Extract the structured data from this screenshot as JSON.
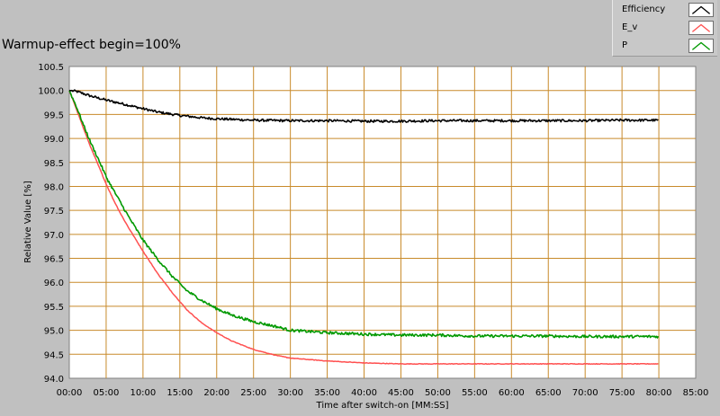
{
  "chart_data": {
    "type": "line",
    "title": "Warmup-effect begin=100%",
    "xlabel": "Time after switch-on [MM:SS]",
    "ylabel": "Relative Value [%]",
    "xlim": [
      0,
      85
    ],
    "ylim": [
      94.0,
      100.5
    ],
    "x_ticks": [
      0,
      5,
      10,
      15,
      20,
      25,
      30,
      35,
      40,
      45,
      50,
      55,
      60,
      65,
      70,
      75,
      80,
      85
    ],
    "x_tick_labels": [
      "00:00",
      "05:00",
      "10:00",
      "15:00",
      "20:00",
      "25:00",
      "30:00",
      "35:00",
      "40:00",
      "45:00",
      "50:00",
      "55:00",
      "60:00",
      "65:00",
      "70:00",
      "75:00",
      "80:00",
      "85:00"
    ],
    "y_ticks": [
      94.0,
      94.5,
      95.0,
      95.5,
      96.0,
      96.5,
      97.0,
      97.5,
      98.0,
      98.5,
      99.0,
      99.5,
      100.0,
      100.5
    ],
    "y_tick_labels": [
      "94.0",
      "94.5",
      "95.0",
      "95.5",
      "96.0",
      "96.5",
      "97.0",
      "97.5",
      "98.0",
      "98.5",
      "99.0",
      "99.5",
      "100.0",
      "100.5"
    ],
    "grid": true,
    "legend_position": "top-right",
    "x_units": "minutes",
    "series": [
      {
        "name": "Efficiency",
        "color": "#000000",
        "x": [
          0,
          1,
          2,
          3,
          4,
          5,
          7,
          10,
          12,
          15,
          18,
          20,
          25,
          30,
          35,
          40,
          45,
          50,
          55,
          60,
          65,
          70,
          75,
          80
        ],
        "y": [
          100.0,
          99.98,
          99.93,
          99.88,
          99.84,
          99.8,
          99.73,
          99.62,
          99.55,
          99.48,
          99.43,
          99.41,
          99.38,
          99.37,
          99.37,
          99.36,
          99.36,
          99.37,
          99.37,
          99.37,
          99.37,
          99.37,
          99.38,
          99.38
        ]
      },
      {
        "name": "E_v",
        "color": "#ff5050",
        "x": [
          0,
          1,
          2,
          3,
          4,
          5,
          6,
          7,
          8,
          10,
          12,
          14,
          16,
          18,
          20,
          22,
          25,
          28,
          30,
          35,
          40,
          45,
          50,
          55,
          60,
          65,
          70,
          75,
          80
        ],
        "y": [
          100.0,
          99.6,
          99.18,
          98.78,
          98.42,
          98.05,
          97.72,
          97.42,
          97.15,
          96.65,
          96.18,
          95.78,
          95.42,
          95.15,
          94.95,
          94.78,
          94.6,
          94.48,
          94.42,
          94.36,
          94.32,
          94.3,
          94.3,
          94.3,
          94.3,
          94.3,
          94.3,
          94.3,
          94.3
        ]
      },
      {
        "name": "P",
        "color": "#009900",
        "x": [
          0,
          1,
          2,
          3,
          4,
          5,
          6,
          7,
          8,
          10,
          12,
          14,
          16,
          18,
          20,
          22,
          25,
          28,
          30,
          35,
          40,
          45,
          50,
          55,
          60,
          65,
          70,
          75,
          80
        ],
        "y": [
          100.0,
          99.65,
          99.25,
          98.88,
          98.55,
          98.2,
          97.92,
          97.65,
          97.38,
          96.88,
          96.48,
          96.12,
          95.82,
          95.62,
          95.45,
          95.32,
          95.18,
          95.08,
          95.0,
          94.95,
          94.92,
          94.9,
          94.9,
          94.88,
          94.88,
          94.88,
          94.87,
          94.87,
          94.87
        ]
      }
    ]
  }
}
